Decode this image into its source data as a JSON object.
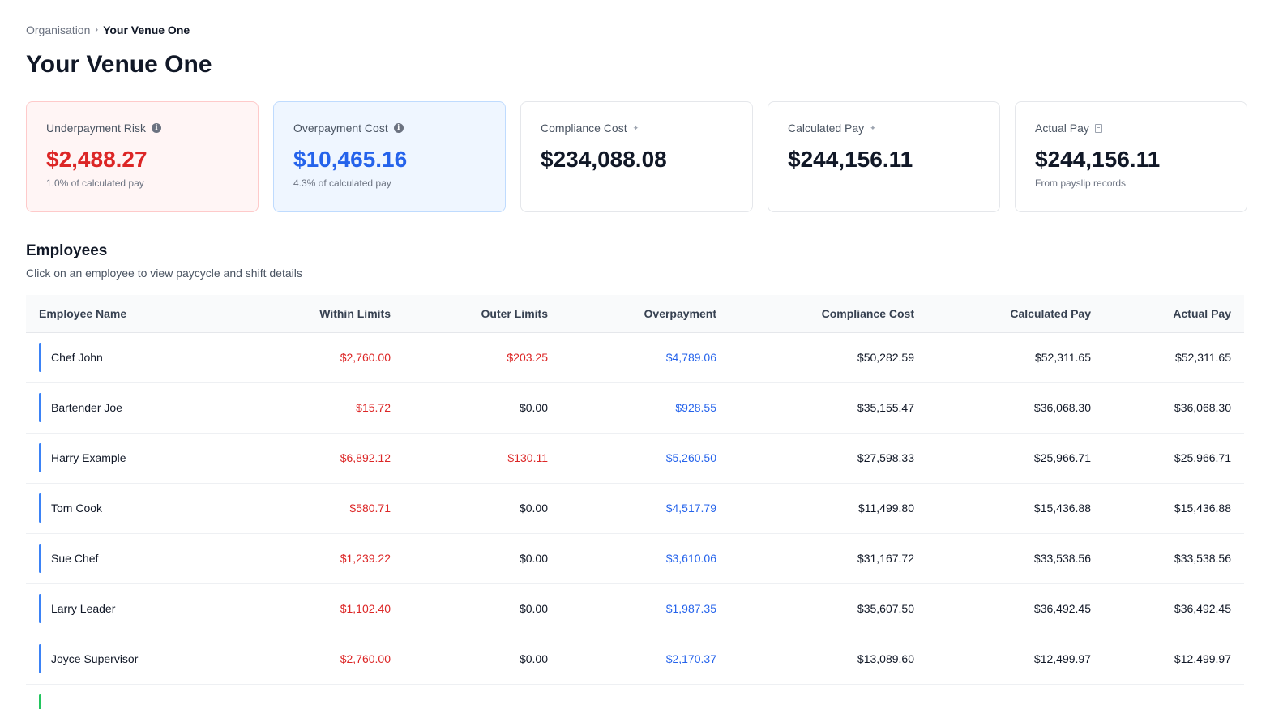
{
  "breadcrumb": {
    "parent": "Organisation",
    "separator": "›",
    "current": "Your Venue One"
  },
  "page_title": "Your Venue One",
  "cards": [
    {
      "label": "Underpayment Risk",
      "icon": "info-icon",
      "value": "$2,488.27",
      "sub": "1.0% of calculated pay",
      "accent": "#dc2626"
    },
    {
      "label": "Overpayment Cost",
      "icon": "info-icon",
      "value": "$10,465.16",
      "sub": "4.3% of calculated pay",
      "accent": "#2563eb"
    },
    {
      "label": "Compliance Cost",
      "icon": "sparkle-icon",
      "value": "$234,088.08",
      "sub": ""
    },
    {
      "label": "Calculated Pay",
      "icon": "sparkle-icon",
      "value": "$244,156.11",
      "sub": ""
    },
    {
      "label": "Actual Pay",
      "icon": "document-icon",
      "value": "$244,156.11",
      "sub": "From payslip records"
    }
  ],
  "employees": {
    "title": "Employees",
    "subtitle": "Click on an employee to view paycycle and shift details",
    "columns": [
      "Employee Name",
      "Within Limits",
      "Outer Limits",
      "Overpayment",
      "Compliance Cost",
      "Calculated Pay",
      "Actual Pay"
    ],
    "rows": [
      {
        "name": "Chef John",
        "within": "$2,760.00",
        "outer": "$203.25",
        "over": "$4,789.06",
        "compliance": "$50,282.59",
        "calculated": "$52,311.65",
        "actual": "$52,311.65"
      },
      {
        "name": "Bartender Joe",
        "within": "$15.72",
        "outer": "$0.00",
        "over": "$928.55",
        "compliance": "$35,155.47",
        "calculated": "$36,068.30",
        "actual": "$36,068.30"
      },
      {
        "name": "Harry Example",
        "within": "$6,892.12",
        "outer": "$130.11",
        "over": "$5,260.50",
        "compliance": "$27,598.33",
        "calculated": "$25,966.71",
        "actual": "$25,966.71"
      },
      {
        "name": "Tom Cook",
        "within": "$580.71",
        "outer": "$0.00",
        "over": "$4,517.79",
        "compliance": "$11,499.80",
        "calculated": "$15,436.88",
        "actual": "$15,436.88"
      },
      {
        "name": "Sue Chef",
        "within": "$1,239.22",
        "outer": "$0.00",
        "over": "$3,610.06",
        "compliance": "$31,167.72",
        "calculated": "$33,538.56",
        "actual": "$33,538.56"
      },
      {
        "name": "Larry Leader",
        "within": "$1,102.40",
        "outer": "$0.00",
        "over": "$1,987.35",
        "compliance": "$35,607.50",
        "calculated": "$36,492.45",
        "actual": "$36,492.45"
      },
      {
        "name": "Joyce Supervisor",
        "within": "$2,760.00",
        "outer": "$0.00",
        "over": "$2,170.37",
        "compliance": "$13,089.60",
        "calculated": "$12,499.97",
        "actual": "$12,499.97"
      }
    ]
  },
  "colors": {
    "negative": "#dc2626",
    "overpayment": "#2563eb",
    "row_marker": "#3b82f6",
    "row_marker_alt": "#22c55e"
  }
}
